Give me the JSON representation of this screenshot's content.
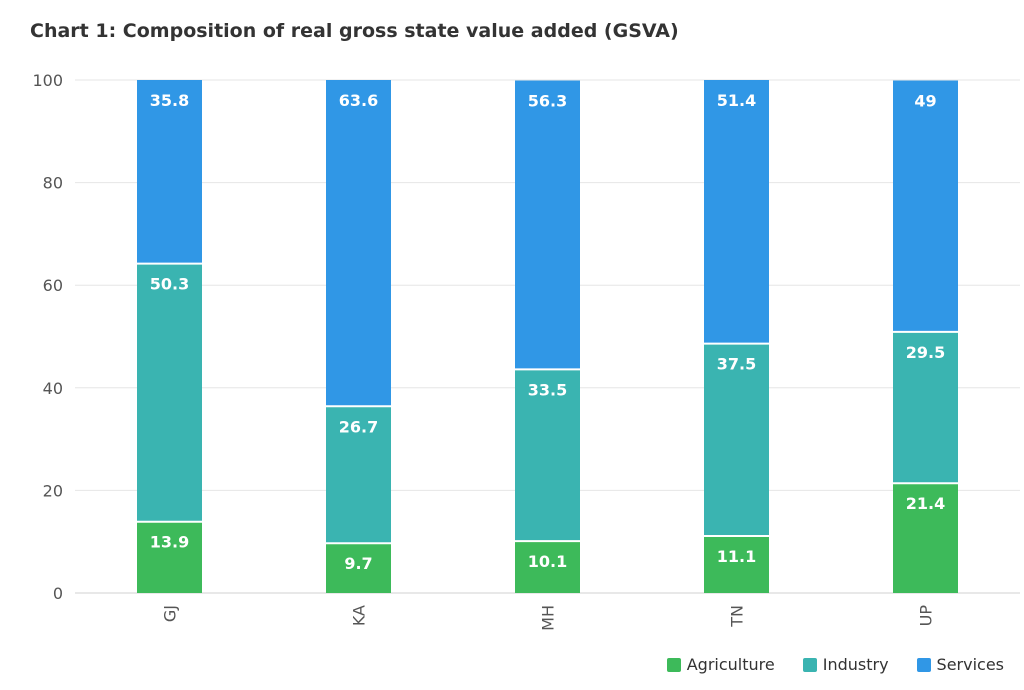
{
  "chart_data": {
    "type": "bar",
    "stacked": true,
    "title": "Chart 1: Composition of real gross state value added (GSVA)",
    "xlabel": "",
    "ylabel": "",
    "categories": [
      "GJ",
      "KA",
      "MH",
      "TN",
      "UP"
    ],
    "ylim": [
      0,
      100
    ],
    "yticks": [
      "0",
      "20",
      "40",
      "60",
      "80",
      "100"
    ],
    "grid": true,
    "legend_position": "bottom-right",
    "series": [
      {
        "name": "Agriculture",
        "color": "#3dba5a",
        "values": [
          13.9,
          9.7,
          10.1,
          11.1,
          21.4
        ]
      },
      {
        "name": "Industry",
        "color": "#3ab4b1",
        "values": [
          50.3,
          26.7,
          33.5,
          37.5,
          29.5
        ]
      },
      {
        "name": "Services",
        "color": "#3097e6",
        "values": [
          35.8,
          63.6,
          56.3,
          51.4,
          49
        ]
      }
    ]
  }
}
